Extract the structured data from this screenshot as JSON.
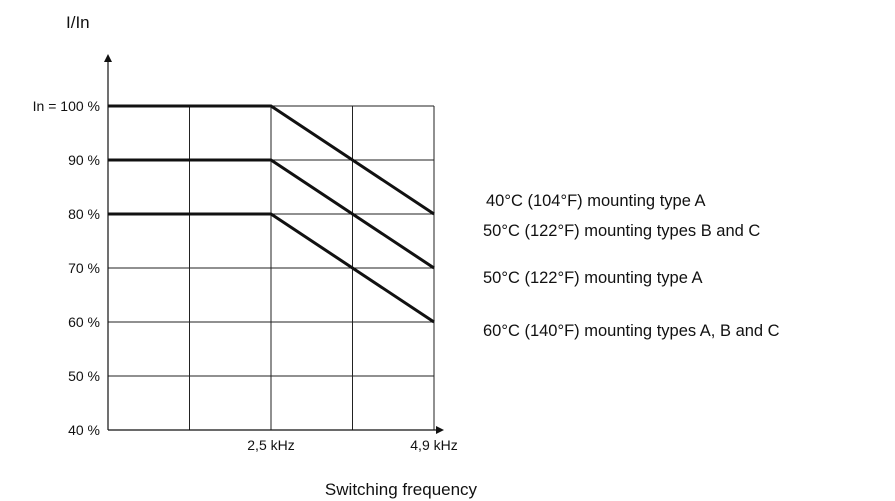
{
  "chart_data": {
    "type": "line",
    "title": "",
    "ylabel": "I/In",
    "xlabel": "Switching frequency",
    "x_tick_labels": [
      "2,5 kHz",
      "4,9 kHz"
    ],
    "x_ticks": [
      2.5,
      4.9
    ],
    "xlim": [
      0.1,
      4.9
    ],
    "y_tick_labels": [
      "In = 100 %",
      "90 %",
      "80 %",
      "70 %",
      "60 %",
      "50 %",
      "40 %"
    ],
    "y_ticks": [
      100,
      90,
      80,
      70,
      60,
      50,
      40
    ],
    "ylim": [
      40,
      100
    ],
    "grid": true,
    "series": [
      {
        "x": [
          0.1,
          2.5,
          4.9
        ],
        "y": [
          100,
          100,
          80
        ]
      },
      {
        "x": [
          0.1,
          2.5,
          4.9
        ],
        "y": [
          90,
          90,
          70
        ]
      },
      {
        "x": [
          0.1,
          2.5,
          4.9
        ],
        "y": [
          80,
          80,
          60
        ]
      }
    ],
    "legend": {
      "placement": "right",
      "entries": [
        "40°C (104°F) mounting type A",
        "50°C (122°F) mounting types B and C",
        "50°C (122°F) mounting type A",
        "60°C (140°F) mounting types A, B and C"
      ]
    }
  }
}
